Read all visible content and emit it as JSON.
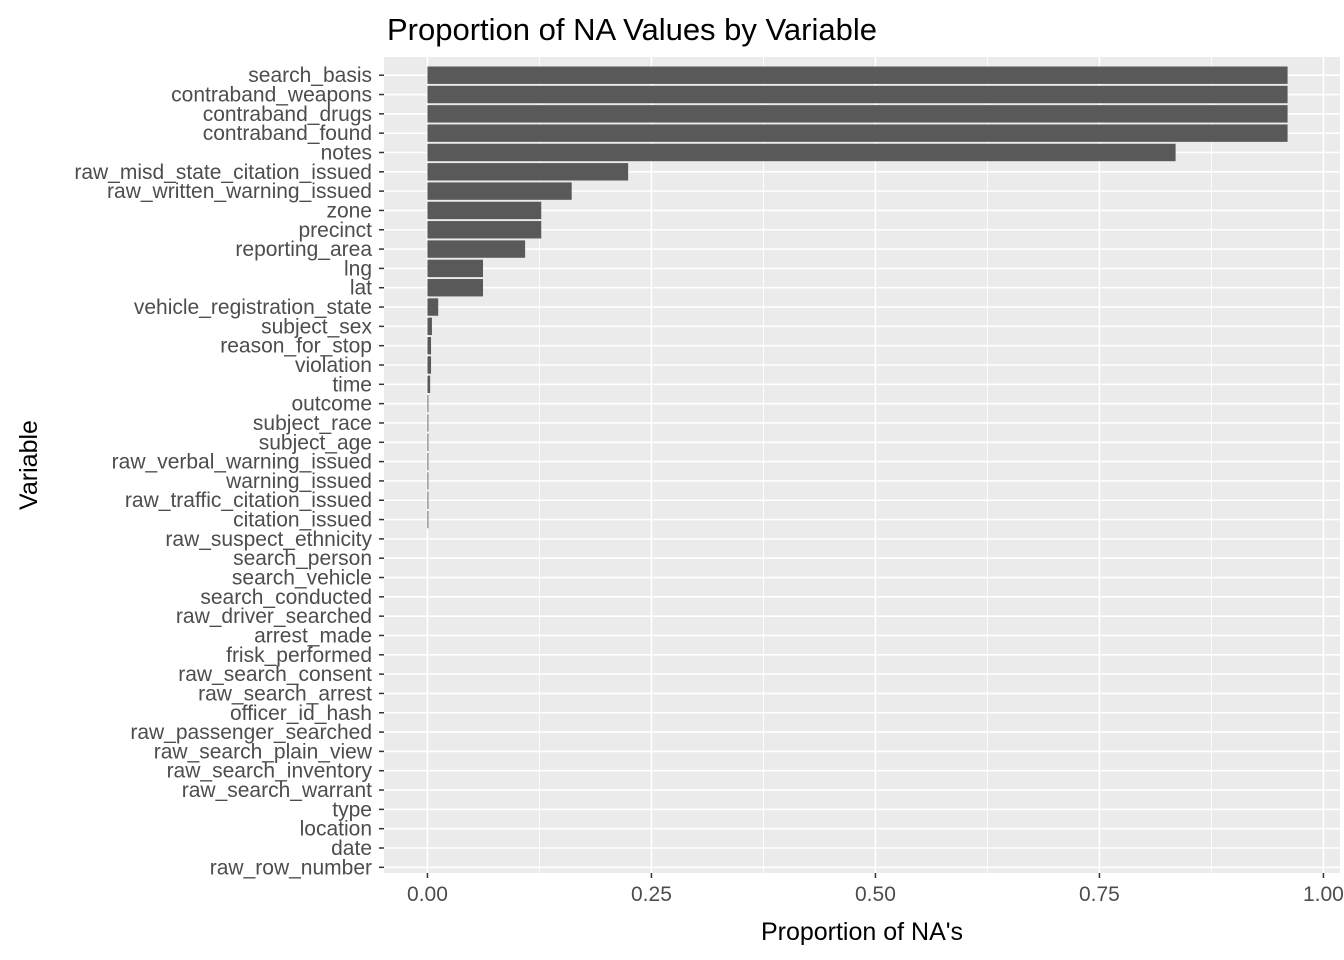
{
  "chart_data": {
    "type": "bar",
    "orientation": "horizontal",
    "title": "Proportion of NA Values by Variable",
    "xlabel": "Proportion of NA's",
    "ylabel": "Variable",
    "xlim": [
      -0.0485,
      1.0185
    ],
    "xticks": [
      0.0,
      0.25,
      0.5,
      0.75,
      1.0
    ],
    "xtick_labels": [
      "0.00",
      "0.25",
      "0.50",
      "0.75",
      "1.00"
    ],
    "grid": true,
    "colors": {
      "panel": "#ebebeb",
      "grid_major": "#ffffff",
      "bar": "#595959",
      "tick_label": "#4d4d4d",
      "tick": "#333333"
    },
    "categories": [
      "search_basis",
      "contraband_weapons",
      "contraband_drugs",
      "contraband_found",
      "notes",
      "raw_misd_state_citation_issued",
      "raw_written_warning_issued",
      "zone",
      "precinct",
      "reporting_area",
      "lng",
      "lat",
      "vehicle_registration_state",
      "subject_sex",
      "reason_for_stop",
      "violation",
      "time",
      "outcome",
      "subject_race",
      "subject_age",
      "raw_verbal_warning_issued",
      "warning_issued",
      "raw_traffic_citation_issued",
      "citation_issued",
      "raw_suspect_ethnicity",
      "search_person",
      "search_vehicle",
      "search_conducted",
      "raw_driver_searched",
      "arrest_made",
      "frisk_performed",
      "raw_search_consent",
      "raw_search_arrest",
      "officer_id_hash",
      "raw_passenger_searched",
      "raw_search_plain_view",
      "raw_search_inventory",
      "raw_search_warrant",
      "type",
      "location",
      "date",
      "raw_row_number"
    ],
    "values": [
      0.96,
      0.96,
      0.96,
      0.96,
      0.835,
      0.224,
      0.161,
      0.127,
      0.127,
      0.109,
      0.062,
      0.062,
      0.012,
      0.005,
      0.004,
      0.004,
      0.003,
      0.001,
      0.001,
      0.001,
      0.001,
      0.001,
      0.001,
      0.001,
      0.0,
      0.0,
      0.0,
      0.0,
      0.0,
      0.0,
      0.0,
      0.0,
      0.0,
      0.0,
      0.0,
      0.0,
      0.0,
      0.0,
      0.0,
      0.0,
      0.0,
      0.0
    ]
  }
}
